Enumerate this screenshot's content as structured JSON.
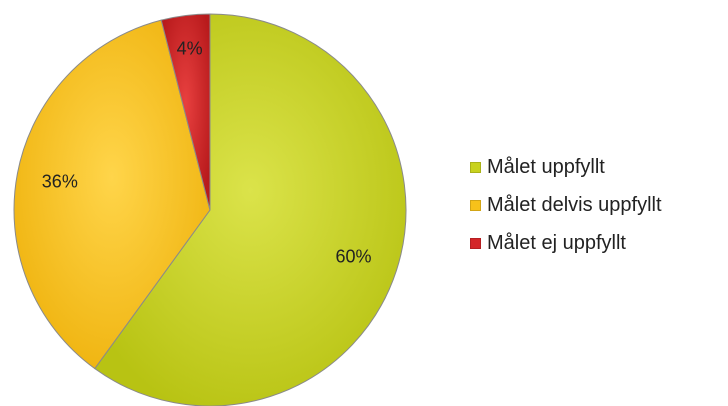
{
  "chart_data": {
    "type": "pie",
    "title": "",
    "slices": [
      {
        "label": "Målet uppfyllt",
        "value": 60,
        "display": "60%",
        "color": "#c8d21e"
      },
      {
        "label": "Målet delvis uppfyllt",
        "value": 36,
        "display": "36%",
        "color": "#f7c21a"
      },
      {
        "label": "Målet ej uppfyllt",
        "value": 4,
        "display": "4%",
        "color": "#d42528"
      }
    ],
    "legend_position": "right"
  }
}
